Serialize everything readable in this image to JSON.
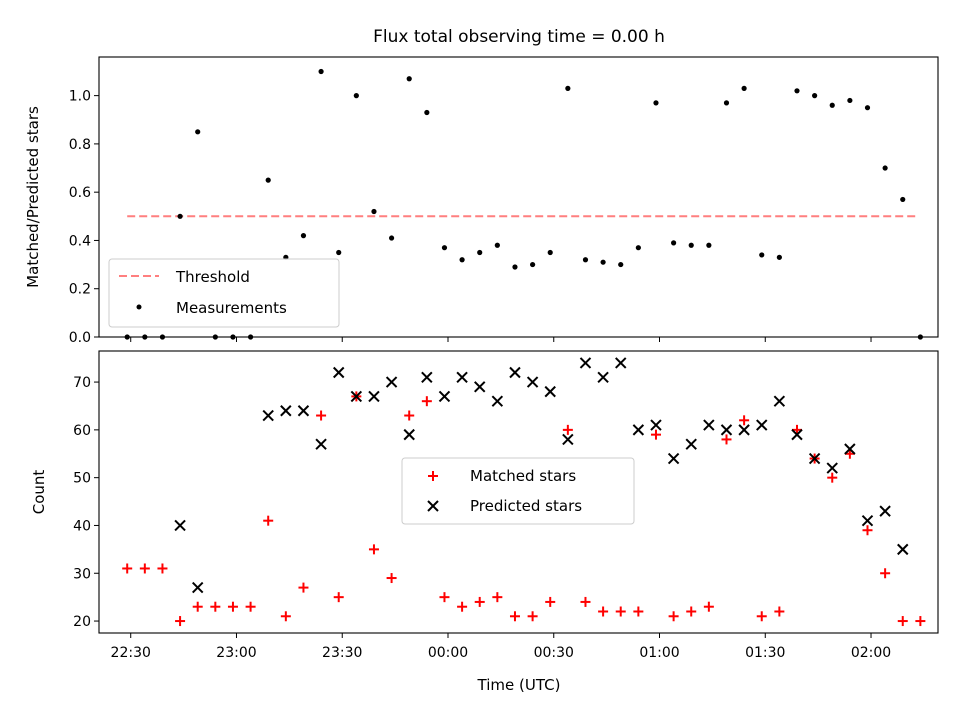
{
  "chart_data": [
    {
      "type": "scatter",
      "title": "Flux total observing time = 0.00 h",
      "xlabel": "",
      "ylabel": "Matched/Predicted stars",
      "ylim": [
        0,
        1.16
      ],
      "yticks": [
        0.0,
        0.2,
        0.4,
        0.6,
        0.8,
        1.0
      ],
      "ytick_labels": [
        "0.0",
        "0.2",
        "0.4",
        "0.6",
        "0.8",
        "1.0"
      ],
      "legend_position": "lower-left",
      "threshold": {
        "name": "Threshold",
        "value": 0.5,
        "x_start": "22:29",
        "x_end": "02:13",
        "color": "#ff7f7f",
        "style": "dashed"
      },
      "series": [
        {
          "name": "Measurements",
          "color": "#000000",
          "marker": "dot",
          "points": [
            {
              "x": "22:29",
              "y": 0.0
            },
            {
              "x": "22:34",
              "y": 0.0
            },
            {
              "x": "22:39",
              "y": 0.0
            },
            {
              "x": "22:44",
              "y": 0.5
            },
            {
              "x": "22:49",
              "y": 0.85
            },
            {
              "x": "22:54",
              "y": 0.0
            },
            {
              "x": "22:59",
              "y": 0.0
            },
            {
              "x": "23:04",
              "y": 0.0
            },
            {
              "x": "23:09",
              "y": 0.65
            },
            {
              "x": "23:14",
              "y": 0.33
            },
            {
              "x": "23:19",
              "y": 0.42
            },
            {
              "x": "23:24",
              "y": 1.1
            },
            {
              "x": "23:29",
              "y": 0.35
            },
            {
              "x": "23:34",
              "y": 1.0
            },
            {
              "x": "23:39",
              "y": 0.52
            },
            {
              "x": "23:44",
              "y": 0.41
            },
            {
              "x": "23:49",
              "y": 1.07
            },
            {
              "x": "23:54",
              "y": 0.93
            },
            {
              "x": "23:59",
              "y": 0.37
            },
            {
              "x": "00:04",
              "y": 0.32
            },
            {
              "x": "00:09",
              "y": 0.35
            },
            {
              "x": "00:14",
              "y": 0.38
            },
            {
              "x": "00:19",
              "y": 0.29
            },
            {
              "x": "00:24",
              "y": 0.3
            },
            {
              "x": "00:29",
              "y": 0.35
            },
            {
              "x": "00:34",
              "y": 1.03
            },
            {
              "x": "00:39",
              "y": 0.32
            },
            {
              "x": "00:44",
              "y": 0.31
            },
            {
              "x": "00:49",
              "y": 0.3
            },
            {
              "x": "00:54",
              "y": 0.37
            },
            {
              "x": "00:59",
              "y": 0.97
            },
            {
              "x": "01:04",
              "y": 0.39
            },
            {
              "x": "01:09",
              "y": 0.38
            },
            {
              "x": "01:14",
              "y": 0.38
            },
            {
              "x": "01:19",
              "y": 0.97
            },
            {
              "x": "01:24",
              "y": 1.03
            },
            {
              "x": "01:29",
              "y": 0.34
            },
            {
              "x": "01:34",
              "y": 0.33
            },
            {
              "x": "01:39",
              "y": 1.02
            },
            {
              "x": "01:44",
              "y": 1.0
            },
            {
              "x": "01:49",
              "y": 0.96
            },
            {
              "x": "01:54",
              "y": 0.98
            },
            {
              "x": "01:59",
              "y": 0.95
            },
            {
              "x": "02:04",
              "y": 0.7
            },
            {
              "x": "02:09",
              "y": 0.57
            },
            {
              "x": "02:14",
              "y": 0.0
            }
          ]
        }
      ]
    },
    {
      "type": "scatter",
      "title": "",
      "xlabel": "Time (UTC)",
      "ylabel": "Count",
      "ylim": [
        17.5,
        76.5
      ],
      "yticks": [
        20,
        30,
        40,
        50,
        60,
        70
      ],
      "ytick_labels": [
        "20",
        "30",
        "40",
        "50",
        "60",
        "70"
      ],
      "xlim": [
        "22:21",
        "02:19"
      ],
      "xticks": [
        "22:30",
        "23:00",
        "23:30",
        "00:00",
        "00:30",
        "01:00",
        "01:30",
        "02:00"
      ],
      "xtick_labels": [
        "22:30",
        "23:00",
        "23:30",
        "00:00",
        "00:30",
        "01:00",
        "01:30",
        "02:00"
      ],
      "legend_position": "center",
      "series": [
        {
          "name": "Matched stars",
          "color": "#ff0000",
          "marker": "plus",
          "points": [
            {
              "x": "22:29",
              "y": 31
            },
            {
              "x": "22:34",
              "y": 31
            },
            {
              "x": "22:39",
              "y": 31
            },
            {
              "x": "22:44",
              "y": 20
            },
            {
              "x": "22:49",
              "y": 23
            },
            {
              "x": "22:54",
              "y": 23
            },
            {
              "x": "22:59",
              "y": 23
            },
            {
              "x": "23:04",
              "y": 23
            },
            {
              "x": "23:09",
              "y": 41
            },
            {
              "x": "23:14",
              "y": 21
            },
            {
              "x": "23:19",
              "y": 27
            },
            {
              "x": "23:24",
              "y": 63
            },
            {
              "x": "23:29",
              "y": 25
            },
            {
              "x": "23:34",
              "y": 67
            },
            {
              "x": "23:39",
              "y": 35
            },
            {
              "x": "23:44",
              "y": 29
            },
            {
              "x": "23:49",
              "y": 63
            },
            {
              "x": "23:54",
              "y": 66
            },
            {
              "x": "23:59",
              "y": 25
            },
            {
              "x": "00:04",
              "y": 23
            },
            {
              "x": "00:09",
              "y": 24
            },
            {
              "x": "00:14",
              "y": 25
            },
            {
              "x": "00:19",
              "y": 21
            },
            {
              "x": "00:24",
              "y": 21
            },
            {
              "x": "00:29",
              "y": 24
            },
            {
              "x": "00:34",
              "y": 60
            },
            {
              "x": "00:39",
              "y": 24
            },
            {
              "x": "00:44",
              "y": 22
            },
            {
              "x": "00:49",
              "y": 22
            },
            {
              "x": "00:54",
              "y": 22
            },
            {
              "x": "00:59",
              "y": 59
            },
            {
              "x": "01:04",
              "y": 21
            },
            {
              "x": "01:09",
              "y": 22
            },
            {
              "x": "01:14",
              "y": 23
            },
            {
              "x": "01:19",
              "y": 58
            },
            {
              "x": "01:24",
              "y": 62
            },
            {
              "x": "01:29",
              "y": 21
            },
            {
              "x": "01:34",
              "y": 22
            },
            {
              "x": "01:39",
              "y": 60
            },
            {
              "x": "01:44",
              "y": 54
            },
            {
              "x": "01:49",
              "y": 50
            },
            {
              "x": "01:54",
              "y": 55
            },
            {
              "x": "01:59",
              "y": 39
            },
            {
              "x": "02:04",
              "y": 30
            },
            {
              "x": "02:09",
              "y": 20
            },
            {
              "x": "02:14",
              "y": 20
            }
          ]
        },
        {
          "name": "Predicted stars",
          "color": "#000000",
          "marker": "x",
          "points": [
            {
              "x": "22:44",
              "y": 40
            },
            {
              "x": "22:49",
              "y": 27
            },
            {
              "x": "23:09",
              "y": 63
            },
            {
              "x": "23:14",
              "y": 64
            },
            {
              "x": "23:19",
              "y": 64
            },
            {
              "x": "23:24",
              "y": 57
            },
            {
              "x": "23:29",
              "y": 72
            },
            {
              "x": "23:34",
              "y": 67
            },
            {
              "x": "23:39",
              "y": 67
            },
            {
              "x": "23:44",
              "y": 70
            },
            {
              "x": "23:49",
              "y": 59
            },
            {
              "x": "23:54",
              "y": 71
            },
            {
              "x": "23:59",
              "y": 67
            },
            {
              "x": "00:04",
              "y": 71
            },
            {
              "x": "00:09",
              "y": 69
            },
            {
              "x": "00:14",
              "y": 66
            },
            {
              "x": "00:19",
              "y": 72
            },
            {
              "x": "00:24",
              "y": 70
            },
            {
              "x": "00:29",
              "y": 68
            },
            {
              "x": "00:34",
              "y": 58
            },
            {
              "x": "00:39",
              "y": 74
            },
            {
              "x": "00:44",
              "y": 71
            },
            {
              "x": "00:49",
              "y": 74
            },
            {
              "x": "00:54",
              "y": 60
            },
            {
              "x": "00:59",
              "y": 61
            },
            {
              "x": "01:04",
              "y": 54
            },
            {
              "x": "01:09",
              "y": 57
            },
            {
              "x": "01:14",
              "y": 61
            },
            {
              "x": "01:19",
              "y": 60
            },
            {
              "x": "01:24",
              "y": 60
            },
            {
              "x": "01:29",
              "y": 61
            },
            {
              "x": "01:34",
              "y": 66
            },
            {
              "x": "01:39",
              "y": 59
            },
            {
              "x": "01:44",
              "y": 54
            },
            {
              "x": "01:49",
              "y": 52
            },
            {
              "x": "01:54",
              "y": 56
            },
            {
              "x": "01:59",
              "y": 41
            },
            {
              "x": "02:04",
              "y": 43
            },
            {
              "x": "02:09",
              "y": 35
            }
          ]
        }
      ]
    }
  ]
}
